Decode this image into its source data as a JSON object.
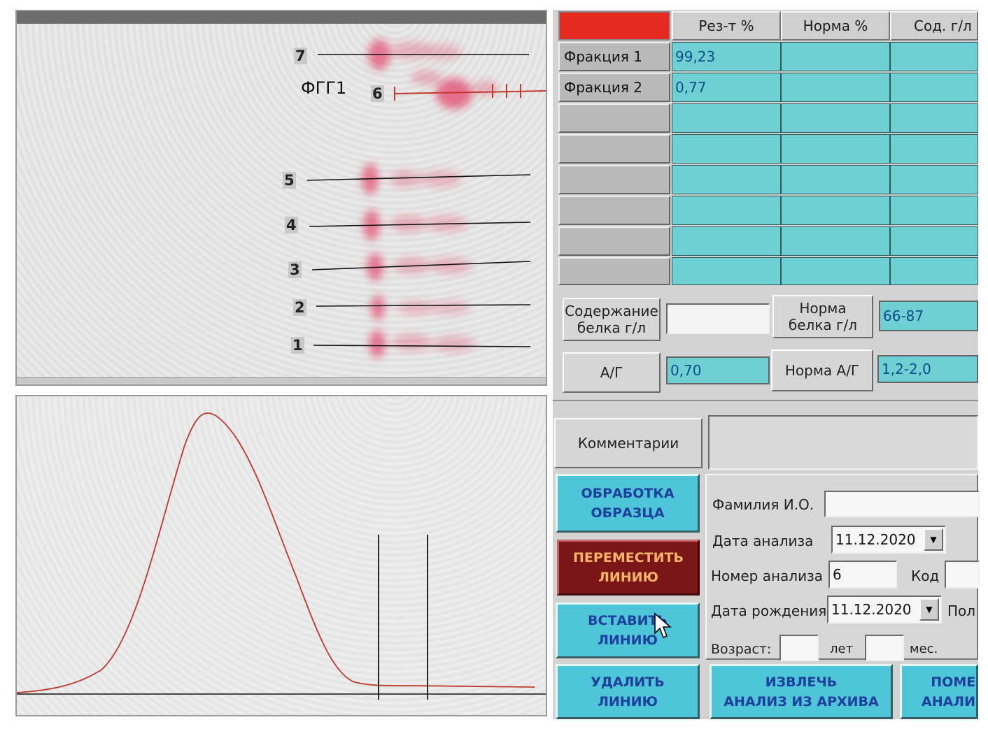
{
  "gel": {
    "sample_label": "ФГГ1",
    "lanes": [
      "7",
      "6",
      "5",
      "4",
      "3",
      "2",
      "1"
    ]
  },
  "table": {
    "headers": [
      "Рез-т %",
      "Норма %",
      "Сод. г/л"
    ],
    "rows": [
      {
        "label": "Фракция 1",
        "result": "99,23",
        "norm": "",
        "content": ""
      },
      {
        "label": "Фракция 2",
        "result": "0,77",
        "norm": "",
        "content": ""
      }
    ]
  },
  "protein": {
    "content_label": "Содержание\nбелка г/л",
    "content_value": "",
    "norm_label": "Норма\nбелка г/л",
    "norm_value": "66-87"
  },
  "ag": {
    "label": "А/Г",
    "value": "0,70",
    "norm_label": "Норма А/Г",
    "norm_value": "1,2-2,0"
  },
  "comment": {
    "label": "Комментарии",
    "value": ""
  },
  "buttons": {
    "process": "ОБРАБОТКА\nОБРАЗЦА",
    "move_line": "ПЕРЕМЕСТИТЬ\nЛИНИЮ",
    "insert_line": "ВСТАВИТЬ\nЛИНИЮ",
    "delete_line": "УДАЛИТЬ\nЛИНИЮ",
    "extract_archive": "ИЗВЛЕЧЬ\nАНАЛИЗ ИЗ АРХИВА",
    "place_analysis": "ПОМЕ\nАНАЛИЗ"
  },
  "form": {
    "name_label": "Фамилия И.О.",
    "name_value": "",
    "analysis_date_label": "Дата анализа",
    "analysis_date_value": "11.12.2020",
    "analysis_number_label": "Номер анализа",
    "analysis_number_value": "6",
    "code_label": "Код",
    "code_value": "",
    "birth_date_label": "Дата рождения",
    "birth_date_value": "11.12.2020",
    "sex_label": "Пол",
    "age_label": "Возраст:",
    "years_label": "лет",
    "years_value": "",
    "months_label": "мес.",
    "months_value": ""
  },
  "colors": {
    "accent_red": "#e62a22",
    "cell_cyan": "#6fcfd3",
    "button_cyan": "#4ec5d8",
    "button_maroon": "#7c1616",
    "curve_red": "#c0392b"
  }
}
